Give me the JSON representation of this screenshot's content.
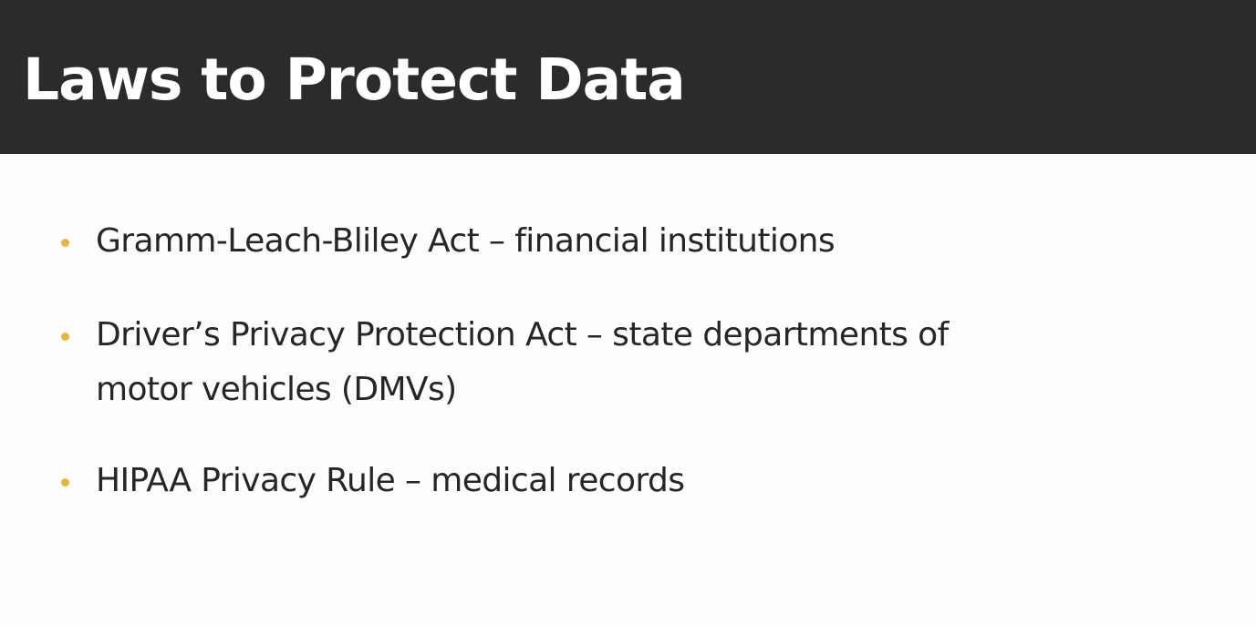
{
  "slide": {
    "title": "Laws to Protect Data",
    "bullets": [
      {
        "text": "Gramm-Leach-Bliley Act – financial institutions"
      },
      {
        "text": "Driver’s Privacy Protection Act – state departments of motor vehicles (DMVs)"
      },
      {
        "text": "HIPAA Privacy Rule – medical records"
      }
    ]
  },
  "colors": {
    "title_bar": "#2b2b2b",
    "title_text": "#ffffff",
    "bullet_dot": "#e8b63c",
    "body_text": "#262626",
    "background": "#fdfdfd"
  }
}
